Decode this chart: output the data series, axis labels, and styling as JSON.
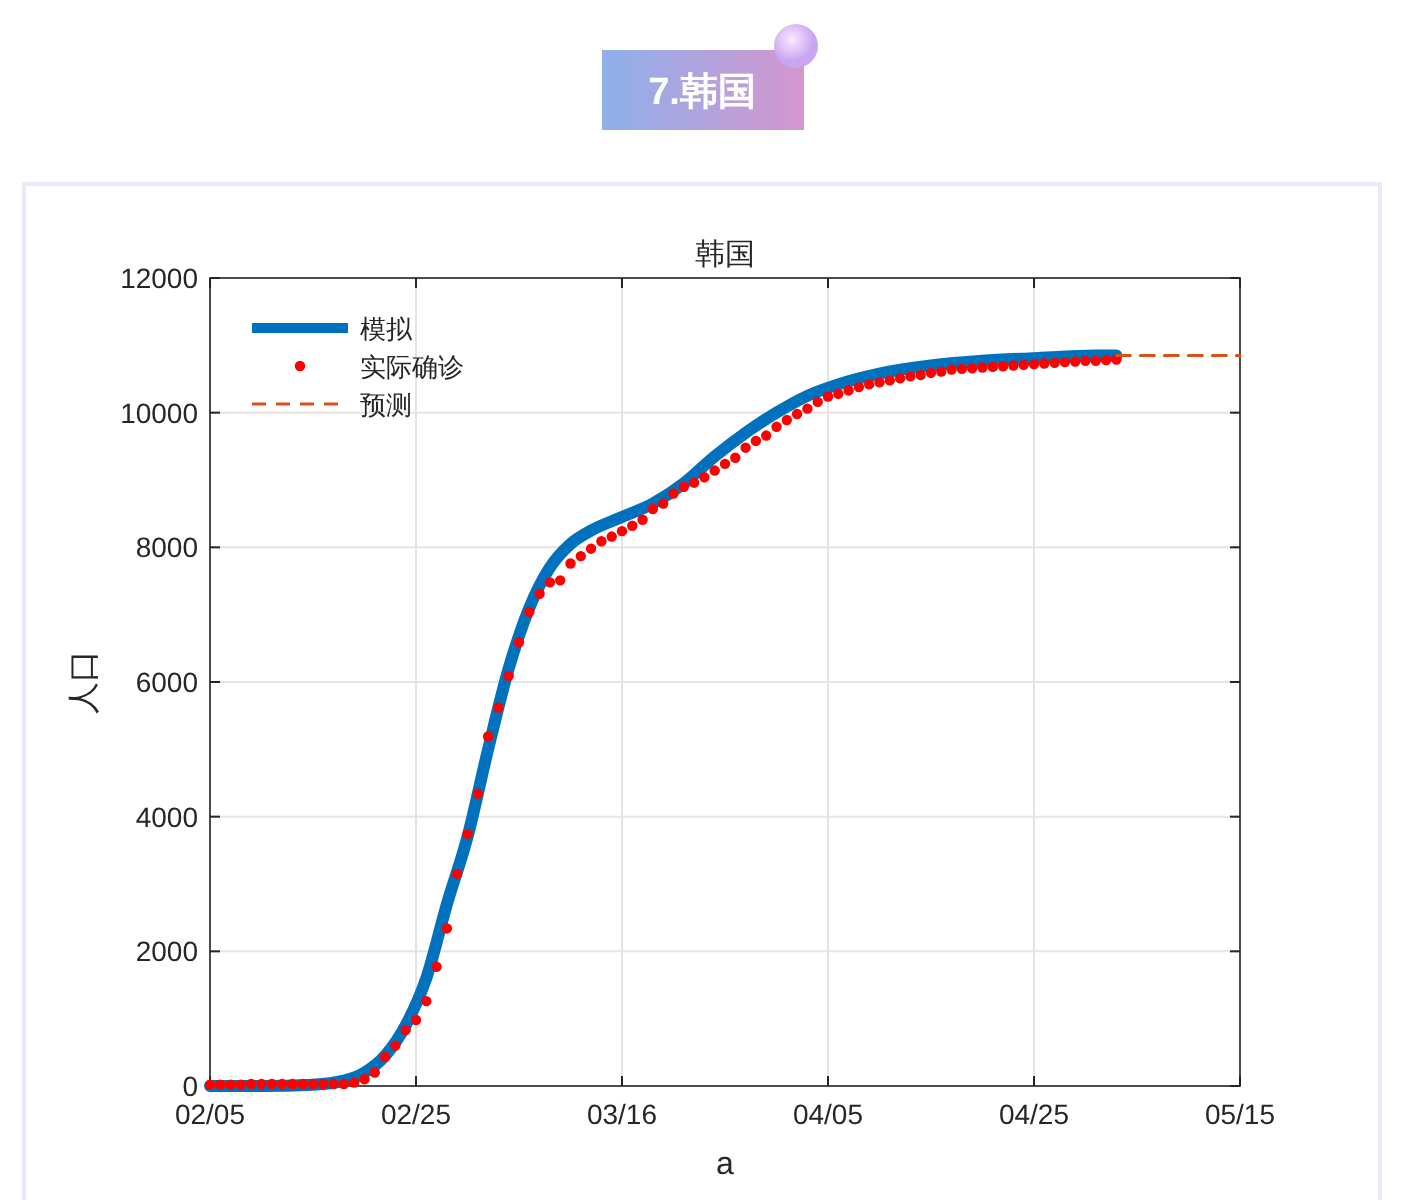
{
  "chart_data": {
    "type": "line",
    "title": "韩国",
    "xlabel": "a",
    "ylabel": "人口",
    "annotations": [
      "7.韩国"
    ],
    "xlim": [
      "--02-05",
      "--05-15"
    ],
    "xticks": [
      {
        "value": "--02-05",
        "label": "02/05"
      },
      {
        "value": "--02-25",
        "label": "02/25"
      },
      {
        "value": "--03-16",
        "label": "03/16"
      },
      {
        "value": "--04-05",
        "label": "04/05"
      },
      {
        "value": "--04-25",
        "label": "04/25"
      },
      {
        "value": "--05-15",
        "label": "05/15"
      }
    ],
    "ylim": [
      0,
      12000
    ],
    "yticks": [
      0,
      2000,
      4000,
      6000,
      8000,
      10000,
      12000
    ],
    "grid": true,
    "legend": "top left",
    "series": [
      {
        "name": "模拟",
        "color": "#0072bd",
        "line_style": "solid",
        "x": [
          "--02-05",
          "--02-10",
          "--02-15",
          "--02-18",
          "--02-20",
          "--02-22",
          "--02-24",
          "--02-26",
          "--02-28",
          "--03-01",
          "--03-03",
          "--03-05",
          "--03-07",
          "--03-09",
          "--03-11",
          "--03-13",
          "--03-16",
          "--03-19",
          "--03-22",
          "--03-25",
          "--03-28",
          "--03-31",
          "--04-03",
          "--04-06",
          "--04-10",
          "--04-15",
          "--04-20",
          "--04-25",
          "--05-01",
          "--05-03"
        ],
        "values": [
          0,
          0,
          20,
          80,
          200,
          450,
          900,
          1600,
          2700,
          3700,
          5000,
          6200,
          7100,
          7700,
          8050,
          8250,
          8450,
          8650,
          8950,
          9350,
          9700,
          10000,
          10250,
          10420,
          10580,
          10700,
          10770,
          10810,
          10850,
          10850
        ]
      },
      {
        "name": "实际确诊",
        "type": "scatter",
        "color": "#ff0000",
        "marker": "circle",
        "x": [
          "--02-05",
          "--02-06",
          "--02-07",
          "--02-08",
          "--02-09",
          "--02-10",
          "--02-11",
          "--02-12",
          "--02-13",
          "--02-14",
          "--02-15",
          "--02-16",
          "--02-17",
          "--02-18",
          "--02-19",
          "--02-20",
          "--02-21",
          "--02-22",
          "--02-23",
          "--02-24",
          "--02-25",
          "--02-26",
          "--02-27",
          "--02-28",
          "--02-29",
          "--03-01",
          "--03-02",
          "--03-03",
          "--03-04",
          "--03-05",
          "--03-06",
          "--03-07",
          "--03-08",
          "--03-09",
          "--03-10",
          "--03-11",
          "--03-12",
          "--03-13",
          "--03-14",
          "--03-15",
          "--03-16",
          "--03-17",
          "--03-18",
          "--03-19",
          "--03-20",
          "--03-21",
          "--03-22",
          "--03-23",
          "--03-24",
          "--03-25",
          "--03-26",
          "--03-27",
          "--03-28",
          "--03-29",
          "--03-30",
          "--03-31",
          "--04-01",
          "--04-02",
          "--04-03",
          "--04-04",
          "--04-05",
          "--04-06",
          "--04-07",
          "--04-08",
          "--04-09",
          "--04-10",
          "--04-11",
          "--04-12",
          "--04-13",
          "--04-14",
          "--04-15",
          "--04-16",
          "--04-17",
          "--04-18",
          "--04-19",
          "--04-20",
          "--04-21",
          "--04-22",
          "--04-23",
          "--04-24",
          "--04-25",
          "--04-26",
          "--04-27",
          "--04-28",
          "--04-29",
          "--04-30",
          "--05-01",
          "--05-02",
          "--05-03"
        ],
        "values": [
          20,
          20,
          20,
          20,
          30,
          30,
          30,
          30,
          30,
          30,
          30,
          30,
          30,
          30,
          50,
          100,
          200,
          430,
          600,
          830,
          980,
          1260,
          1770,
          2340,
          3150,
          3740,
          4340,
          5190,
          5620,
          6090,
          6590,
          7040,
          7310,
          7480,
          7510,
          7760,
          7870,
          7980,
          8090,
          8160,
          8240,
          8320,
          8410,
          8570,
          8650,
          8800,
          8900,
          8960,
          9040,
          9140,
          9240,
          9330,
          9480,
          9580,
          9660,
          9790,
          9890,
          9980,
          10060,
          10160,
          10240,
          10280,
          10330,
          10380,
          10420,
          10450,
          10480,
          10510,
          10540,
          10560,
          10590,
          10610,
          10640,
          10650,
          10660,
          10670,
          10680,
          10690,
          10700,
          10710,
          10720,
          10730,
          10740,
          10750,
          10760,
          10770,
          10770,
          10780,
          10790
        ]
      },
      {
        "name": "预测",
        "color": "#d95319",
        "line_style": "dashed",
        "x": [
          "--05-03",
          "--05-15"
        ],
        "values": [
          10850,
          10850
        ]
      }
    ]
  }
}
